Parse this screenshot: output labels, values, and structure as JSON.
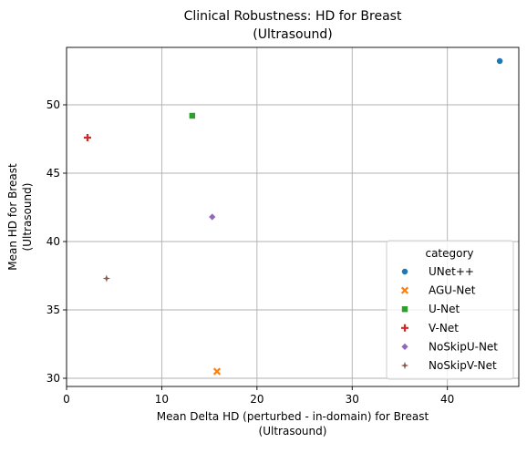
{
  "chart_data": {
    "type": "scatter",
    "title": [
      "Clinical Robustness: HD for Breast",
      "(Ultrasound)"
    ],
    "xlabel": [
      "Mean Delta HD (perturbed - in-domain) for Breast",
      "(Ultrasound)"
    ],
    "ylabel": [
      "Mean HD for Breast",
      "(Ultrasound)"
    ],
    "xlim": [
      0,
      47.5
    ],
    "ylim": [
      29.4,
      54.2
    ],
    "xticks": [
      0,
      10,
      20,
      30,
      40
    ],
    "yticks": [
      30,
      35,
      40,
      45,
      50
    ],
    "grid": true,
    "legend": {
      "title": "category",
      "position": "lower-right"
    },
    "series": [
      {
        "name": "UNet++",
        "marker": "circle",
        "color": "#1f77b4",
        "points": [
          [
            45.5,
            53.2
          ]
        ]
      },
      {
        "name": "AGU-Net",
        "marker": "x",
        "color": "#ff7f0e",
        "points": [
          [
            15.8,
            30.5
          ]
        ]
      },
      {
        "name": "U-Net",
        "marker": "square",
        "color": "#2ca02c",
        "points": [
          [
            13.2,
            49.2
          ]
        ]
      },
      {
        "name": "V-Net",
        "marker": "plus",
        "color": "#d62728",
        "points": [
          [
            2.2,
            47.6
          ]
        ]
      },
      {
        "name": "NoSkipU-Net",
        "marker": "diamond",
        "color": "#9467bd",
        "points": [
          [
            15.3,
            41.8
          ]
        ]
      },
      {
        "name": "NoSkipV-Net",
        "marker": "star",
        "color": "#8c564b",
        "points": [
          [
            4.2,
            37.3
          ]
        ]
      }
    ]
  }
}
